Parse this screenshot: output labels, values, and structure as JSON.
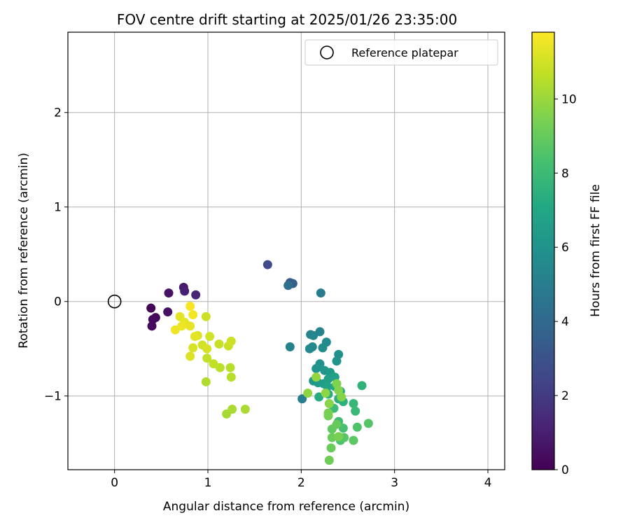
{
  "chart_data": {
    "type": "scatter",
    "title": "FOV centre drift starting at 2025/01/26 23:35:00",
    "xlabel": "Angular distance from reference (arcmin)",
    "ylabel": "Rotation from reference (arcmin)",
    "xlim": [
      -0.5,
      4.18
    ],
    "ylim": [
      -1.78,
      2.85
    ],
    "xticks": [
      0,
      1,
      2,
      3,
      4
    ],
    "yticks": [
      -1,
      0,
      1,
      2
    ],
    "xtick_labels": [
      "0",
      "1",
      "2",
      "3",
      "4"
    ],
    "ytick_labels": [
      "−1",
      "0",
      "1",
      "2"
    ],
    "grid": true,
    "legend": {
      "label": "Reference platepar",
      "location": "top-right"
    },
    "reference_point": {
      "x": 0,
      "y": 0
    },
    "colorbar": {
      "label": "Hours from first FF file",
      "colormap": "viridis",
      "range": [
        0,
        11.8
      ],
      "ticks": [
        0,
        2,
        4,
        6,
        8,
        10
      ],
      "tick_labels": [
        "0",
        "2",
        "4",
        "6",
        "8",
        "10"
      ]
    },
    "points": [
      {
        "x": 0.39,
        "y": -0.07,
        "h": 0.1
      },
      {
        "x": 0.44,
        "y": -0.17,
        "h": 0.2
      },
      {
        "x": 0.41,
        "y": -0.19,
        "h": 0.3
      },
      {
        "x": 0.4,
        "y": -0.26,
        "h": 0.3
      },
      {
        "x": 0.57,
        "y": -0.11,
        "h": 0.5
      },
      {
        "x": 0.58,
        "y": 0.09,
        "h": 0.6
      },
      {
        "x": 0.74,
        "y": 0.15,
        "h": 0.8
      },
      {
        "x": 0.75,
        "y": 0.11,
        "h": 1.0
      },
      {
        "x": 0.87,
        "y": 0.07,
        "h": 1.2
      },
      {
        "x": 1.64,
        "y": 0.39,
        "h": 2.7
      },
      {
        "x": 1.88,
        "y": 0.2,
        "h": 3.3
      },
      {
        "x": 1.91,
        "y": 0.19,
        "h": 3.5
      },
      {
        "x": 1.86,
        "y": 0.17,
        "h": 4.3
      },
      {
        "x": 2.21,
        "y": 0.09,
        "h": 4.9
      },
      {
        "x": 1.88,
        "y": -0.48,
        "h": 5.2
      },
      {
        "x": 2.01,
        "y": -1.03,
        "h": 5.0
      },
      {
        "x": 2.1,
        "y": -0.35,
        "h": 5.3
      },
      {
        "x": 2.13,
        "y": -0.36,
        "h": 5.4
      },
      {
        "x": 2.2,
        "y": -0.32,
        "h": 5.3
      },
      {
        "x": 2.27,
        "y": -0.43,
        "h": 5.6
      },
      {
        "x": 2.12,
        "y": -0.48,
        "h": 5.5
      },
      {
        "x": 2.09,
        "y": -0.5,
        "h": 5.5
      },
      {
        "x": 2.23,
        "y": -0.49,
        "h": 5.7
      },
      {
        "x": 2.4,
        "y": -0.56,
        "h": 5.9
      },
      {
        "x": 2.38,
        "y": -0.63,
        "h": 6.0
      },
      {
        "x": 2.2,
        "y": -0.66,
        "h": 5.9
      },
      {
        "x": 2.16,
        "y": -0.71,
        "h": 6.1
      },
      {
        "x": 2.25,
        "y": -0.73,
        "h": 6.2
      },
      {
        "x": 2.31,
        "y": -0.75,
        "h": 6.3
      },
      {
        "x": 2.13,
        "y": -0.84,
        "h": 6.2
      },
      {
        "x": 2.18,
        "y": -0.86,
        "h": 6.4
      },
      {
        "x": 2.24,
        "y": -0.87,
        "h": 6.5
      },
      {
        "x": 2.29,
        "y": -0.82,
        "h": 6.6
      },
      {
        "x": 2.36,
        "y": -0.8,
        "h": 6.7
      },
      {
        "x": 2.28,
        "y": -0.9,
        "h": 6.8
      },
      {
        "x": 2.36,
        "y": -0.9,
        "h": 6.9
      },
      {
        "x": 2.42,
        "y": -0.95,
        "h": 7.0
      },
      {
        "x": 2.19,
        "y": -1.01,
        "h": 7.2
      },
      {
        "x": 2.29,
        "y": -0.98,
        "h": 7.3
      },
      {
        "x": 2.4,
        "y": -1.03,
        "h": 7.4
      },
      {
        "x": 2.45,
        "y": -1.06,
        "h": 7.5
      },
      {
        "x": 2.65,
        "y": -0.89,
        "h": 7.6
      },
      {
        "x": 2.56,
        "y": -1.08,
        "h": 7.8
      },
      {
        "x": 2.58,
        "y": -1.16,
        "h": 7.9
      },
      {
        "x": 2.35,
        "y": -1.13,
        "h": 8.0
      },
      {
        "x": 2.4,
        "y": -1.27,
        "h": 8.1
      },
      {
        "x": 2.45,
        "y": -1.34,
        "h": 8.3
      },
      {
        "x": 2.6,
        "y": -1.33,
        "h": 8.5
      },
      {
        "x": 2.72,
        "y": -1.29,
        "h": 8.6
      },
      {
        "x": 2.42,
        "y": -1.47,
        "h": 8.4
      },
      {
        "x": 2.46,
        "y": -1.44,
        "h": 8.7
      },
      {
        "x": 2.56,
        "y": -1.47,
        "h": 8.8
      },
      {
        "x": 2.33,
        "y": -1.35,
        "h": 8.9
      },
      {
        "x": 2.38,
        "y": -1.3,
        "h": 9.0
      },
      {
        "x": 2.33,
        "y": -1.44,
        "h": 9.1
      },
      {
        "x": 2.32,
        "y": -1.55,
        "h": 9.1
      },
      {
        "x": 2.3,
        "y": -1.68,
        "h": 9.2
      },
      {
        "x": 2.29,
        "y": -1.21,
        "h": 9.3
      },
      {
        "x": 2.29,
        "y": -1.18,
        "h": 9.4
      },
      {
        "x": 2.4,
        "y": -1.43,
        "h": 9.4
      },
      {
        "x": 2.38,
        "y": -0.87,
        "h": 9.5
      },
      {
        "x": 2.4,
        "y": -0.94,
        "h": 9.6
      },
      {
        "x": 2.43,
        "y": -1.01,
        "h": 9.6
      },
      {
        "x": 2.3,
        "y": -1.08,
        "h": 9.7
      },
      {
        "x": 2.07,
        "y": -0.97,
        "h": 9.8
      },
      {
        "x": 2.26,
        "y": -0.97,
        "h": 9.8
      },
      {
        "x": 2.16,
        "y": -0.8,
        "h": 9.9
      },
      {
        "x": 1.2,
        "y": -1.19,
        "h": 10.2
      },
      {
        "x": 1.26,
        "y": -1.14,
        "h": 10.3
      },
      {
        "x": 1.4,
        "y": -1.14,
        "h": 10.3
      },
      {
        "x": 0.98,
        "y": -0.85,
        "h": 10.4
      },
      {
        "x": 1.25,
        "y": -0.8,
        "h": 10.5
      },
      {
        "x": 1.24,
        "y": -0.7,
        "h": 10.5
      },
      {
        "x": 1.13,
        "y": -0.7,
        "h": 10.6
      },
      {
        "x": 1.06,
        "y": -0.66,
        "h": 10.7
      },
      {
        "x": 0.99,
        "y": -0.6,
        "h": 10.7
      },
      {
        "x": 1.12,
        "y": -0.45,
        "h": 10.8
      },
      {
        "x": 1.22,
        "y": -0.47,
        "h": 10.8
      },
      {
        "x": 1.25,
        "y": -0.42,
        "h": 10.9
      },
      {
        "x": 0.98,
        "y": -0.16,
        "h": 10.9
      },
      {
        "x": 1.02,
        "y": -0.37,
        "h": 11.0
      },
      {
        "x": 0.94,
        "y": -0.46,
        "h": 11.0
      },
      {
        "x": 0.99,
        "y": -0.5,
        "h": 11.1
      },
      {
        "x": 0.84,
        "y": -0.49,
        "h": 11.1
      },
      {
        "x": 0.81,
        "y": -0.58,
        "h": 11.2
      },
      {
        "x": 0.89,
        "y": -0.36,
        "h": 11.2
      },
      {
        "x": 0.86,
        "y": -0.37,
        "h": 11.3
      },
      {
        "x": 0.7,
        "y": -0.16,
        "h": 11.3
      },
      {
        "x": 0.75,
        "y": -0.22,
        "h": 11.4
      },
      {
        "x": 0.81,
        "y": -0.26,
        "h": 11.4
      },
      {
        "x": 0.72,
        "y": -0.26,
        "h": 11.5
      },
      {
        "x": 0.65,
        "y": -0.3,
        "h": 11.5
      },
      {
        "x": 0.84,
        "y": -0.14,
        "h": 11.6
      },
      {
        "x": 0.81,
        "y": -0.05,
        "h": 11.7
      }
    ]
  }
}
